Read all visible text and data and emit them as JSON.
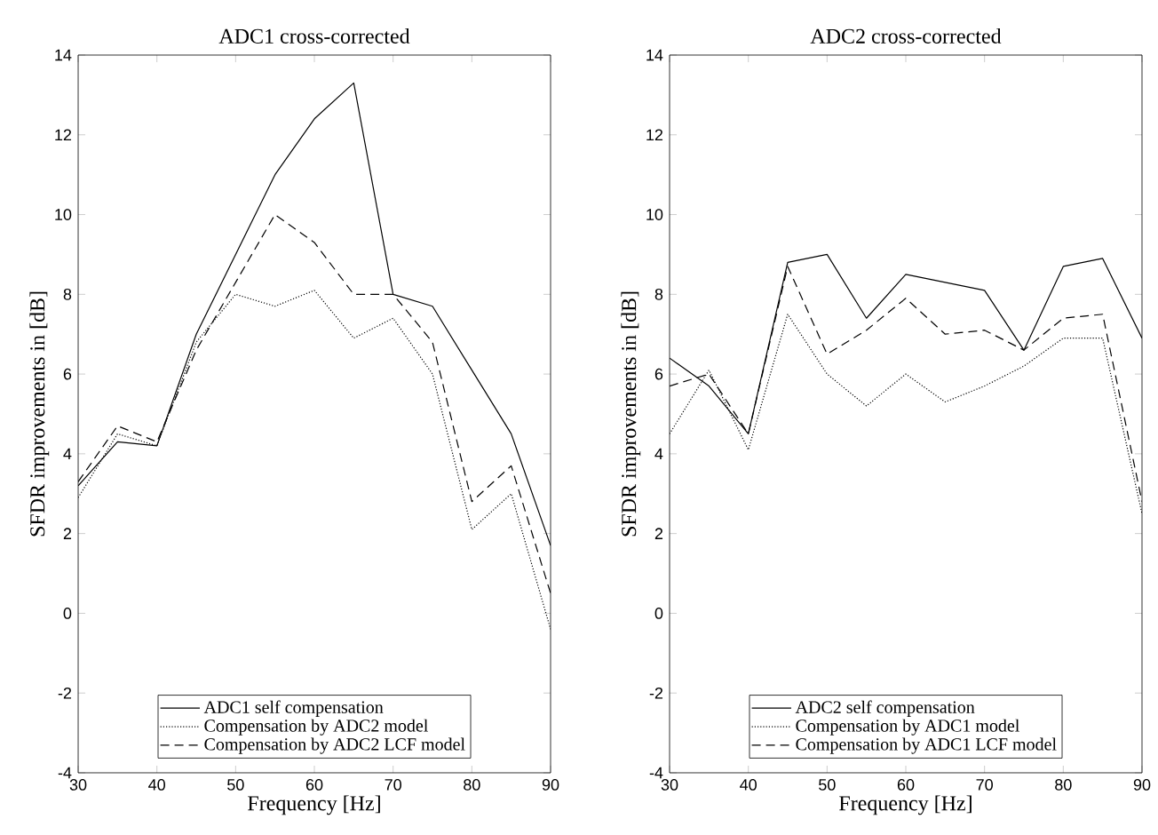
{
  "chart_data": [
    {
      "type": "line",
      "title": "ADC1 cross-corrected",
      "xlabel": "Frequency [Hz]",
      "ylabel": "SFDR improvements in [dB]",
      "x": [
        30,
        35,
        40,
        45,
        50,
        55,
        60,
        65,
        70,
        75,
        80,
        85,
        90
      ],
      "xlim": [
        30,
        90
      ],
      "xticks": [
        30,
        40,
        50,
        60,
        70,
        80,
        90
      ],
      "ylim": [
        -4,
        14
      ],
      "yticks": [
        -4,
        -2,
        0,
        2,
        4,
        6,
        8,
        10,
        12,
        14
      ],
      "legend": "bottom",
      "series": [
        {
          "name": "ADC1 self compensation",
          "color": "#000000",
          "line_style": "solid",
          "values": [
            3.2,
            4.3,
            4.2,
            7.0,
            9.0,
            11.0,
            12.4,
            13.3,
            8.0,
            7.7,
            6.1,
            4.5,
            1.7
          ]
        },
        {
          "name": "Compensation by ADC2 model",
          "color": "#000000",
          "line_style": "dotted",
          "values": [
            2.9,
            4.5,
            4.2,
            6.8,
            8.0,
            7.7,
            8.1,
            6.9,
            7.4,
            6.0,
            2.1,
            3.0,
            -0.4
          ]
        },
        {
          "name": "Compensation by ADC2 LCF model",
          "color": "#000000",
          "line_style": "dashed",
          "values": [
            3.3,
            4.7,
            4.3,
            6.6,
            8.3,
            10.0,
            9.3,
            8.0,
            8.0,
            6.8,
            2.8,
            3.7,
            0.5
          ]
        }
      ]
    },
    {
      "type": "line",
      "title": "ADC2 cross-corrected",
      "xlabel": "Frequency [Hz]",
      "ylabel": "SFDR improvements in [dB]",
      "x": [
        30,
        35,
        40,
        45,
        50,
        55,
        60,
        65,
        70,
        75,
        80,
        85,
        90
      ],
      "xlim": [
        30,
        90
      ],
      "xticks": [
        30,
        40,
        50,
        60,
        70,
        80,
        90
      ],
      "ylim": [
        -4,
        14
      ],
      "yticks": [
        -4,
        -2,
        0,
        2,
        4,
        6,
        8,
        10,
        12,
        14
      ],
      "legend": "bottom",
      "series": [
        {
          "name": "ADC2 self compensation",
          "color": "#000000",
          "line_style": "solid",
          "values": [
            6.4,
            5.7,
            4.5,
            8.8,
            9.0,
            7.4,
            8.5,
            8.3,
            8.1,
            6.6,
            8.7,
            8.9,
            6.9
          ]
        },
        {
          "name": "Compensation by ADC1 model",
          "color": "#000000",
          "line_style": "dotted",
          "values": [
            4.5,
            6.1,
            4.1,
            7.5,
            6.0,
            5.2,
            6.0,
            5.3,
            5.7,
            6.2,
            6.9,
            6.9,
            2.5
          ]
        },
        {
          "name": "Compensation by ADC1 LCF model",
          "color": "#000000",
          "line_style": "dashed",
          "values": [
            5.7,
            6.0,
            4.5,
            8.7,
            6.5,
            7.1,
            7.9,
            7.0,
            7.1,
            6.6,
            7.4,
            7.5,
            2.8
          ]
        }
      ]
    }
  ]
}
